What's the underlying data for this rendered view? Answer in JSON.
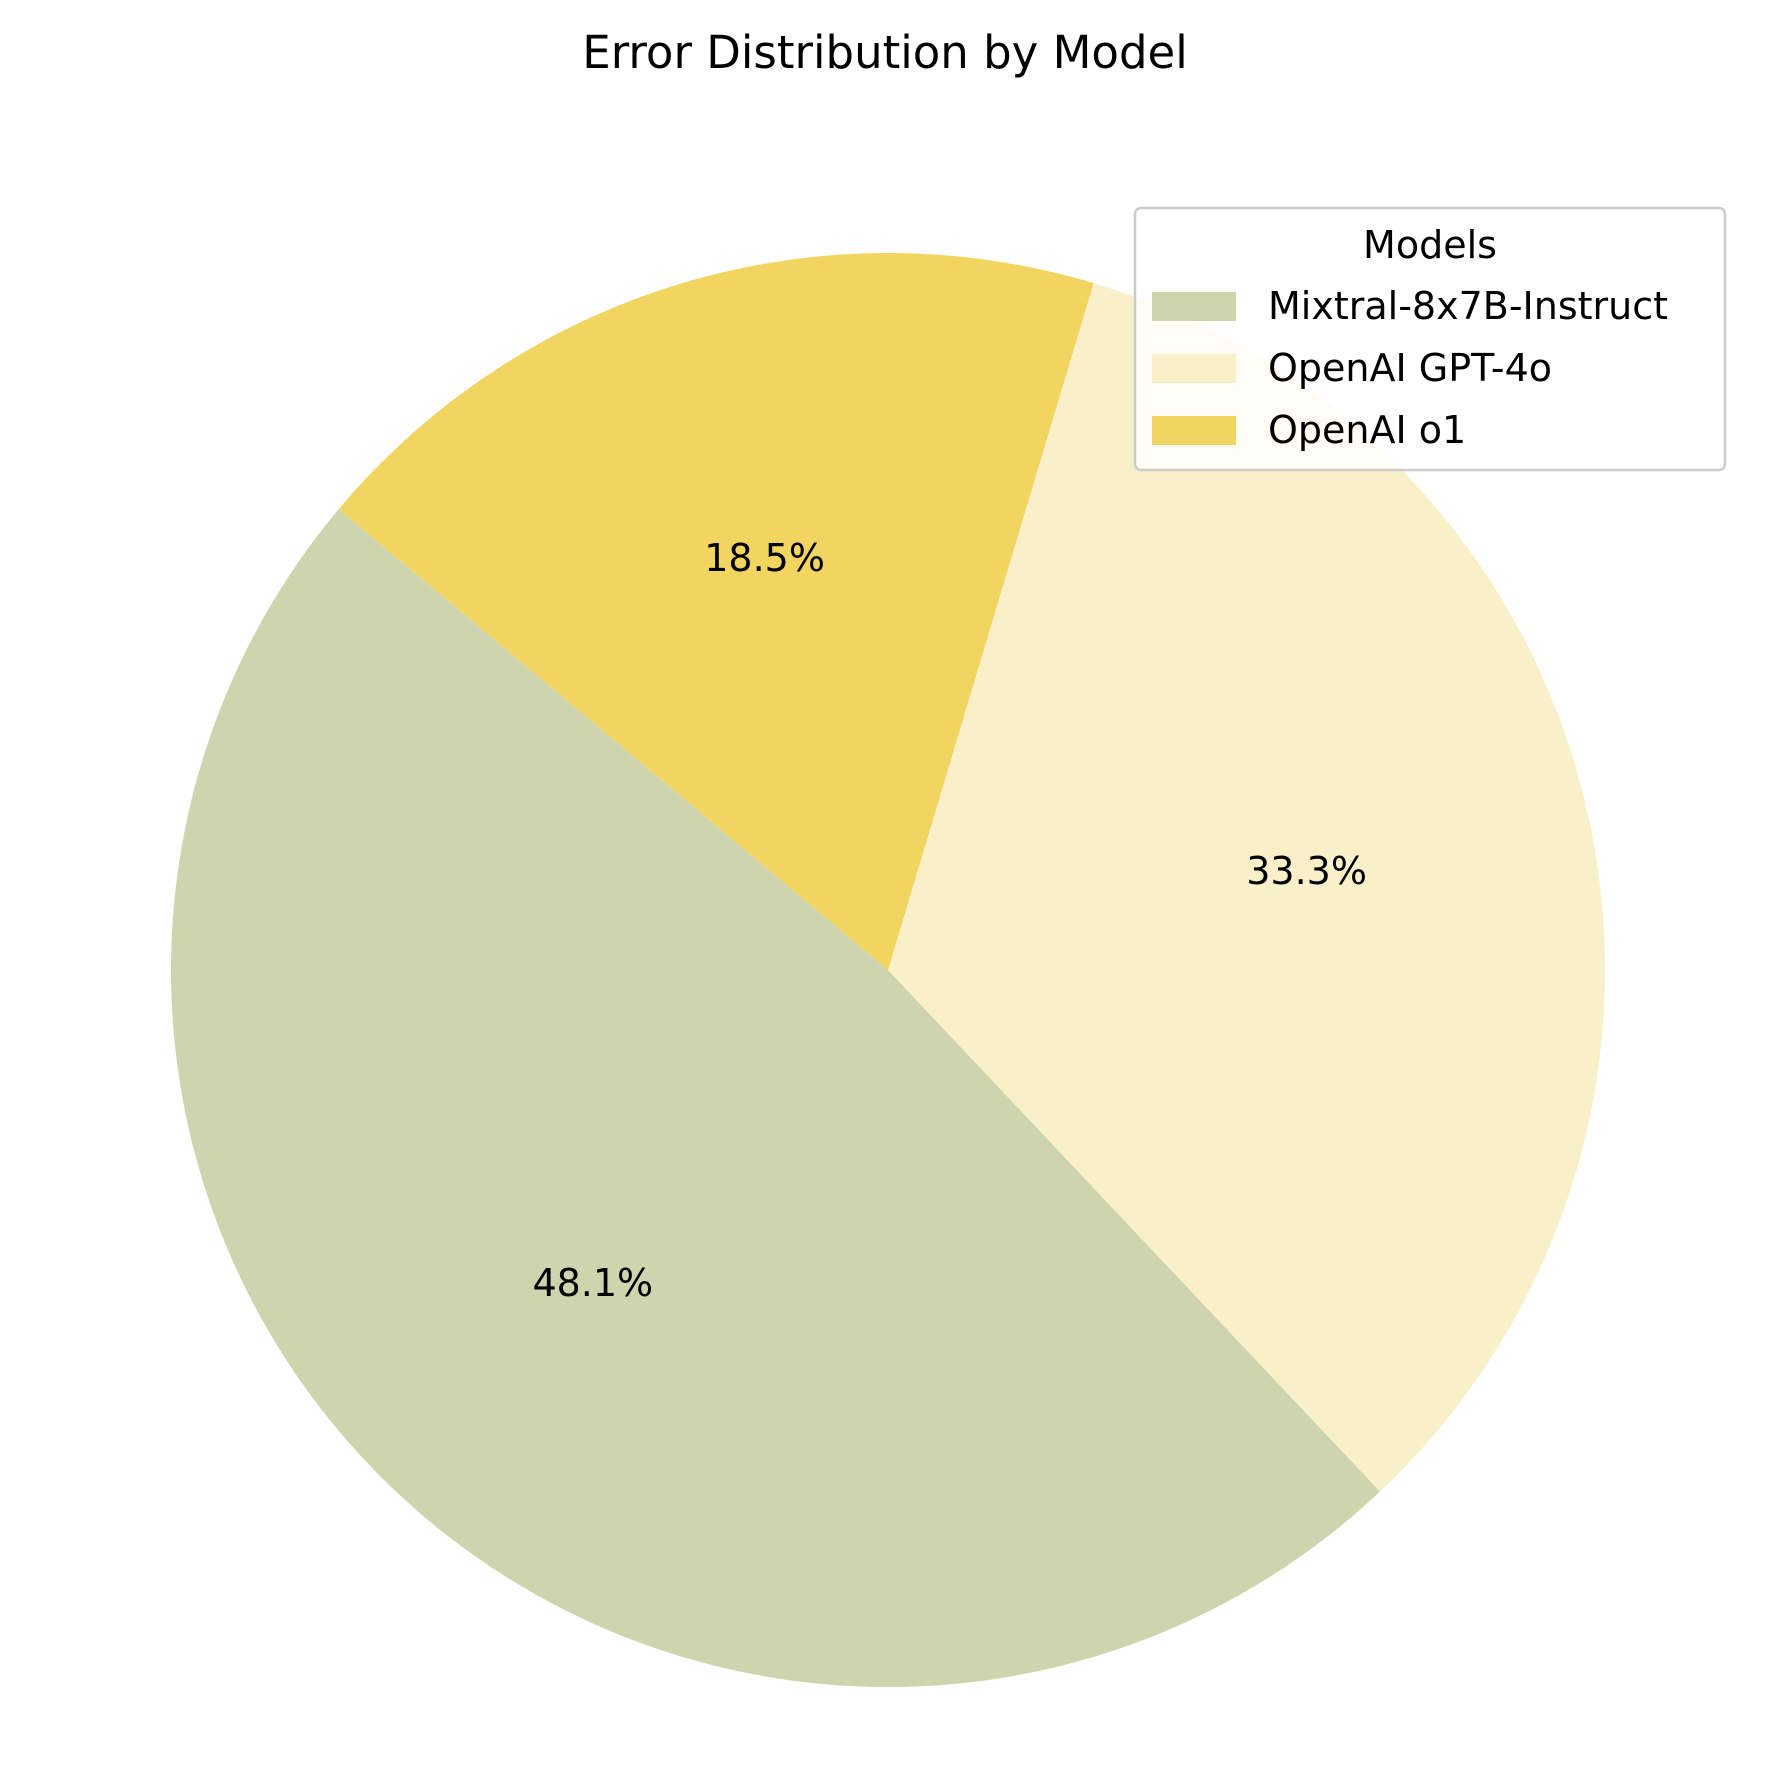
{
  "chart_data": {
    "type": "pie",
    "title": "Error Distribution by Model",
    "legend_title": "Models",
    "legend_placement": "top-right",
    "start_angle_deg": 140,
    "direction": "counterclockwise",
    "slices": [
      {
        "label": "Mixtral-8x7B-Instruct",
        "value": 48.1,
        "pct_label": "48.1%",
        "color": "#ced5ae"
      },
      {
        "label": "OpenAI GPT-4o",
        "value": 33.3,
        "pct_label": "33.3%",
        "color": "#f9f0ca"
      },
      {
        "label": "OpenAI o1",
        "value": 18.5,
        "pct_label": "18.5%",
        "color": "#f2d460"
      }
    ]
  }
}
